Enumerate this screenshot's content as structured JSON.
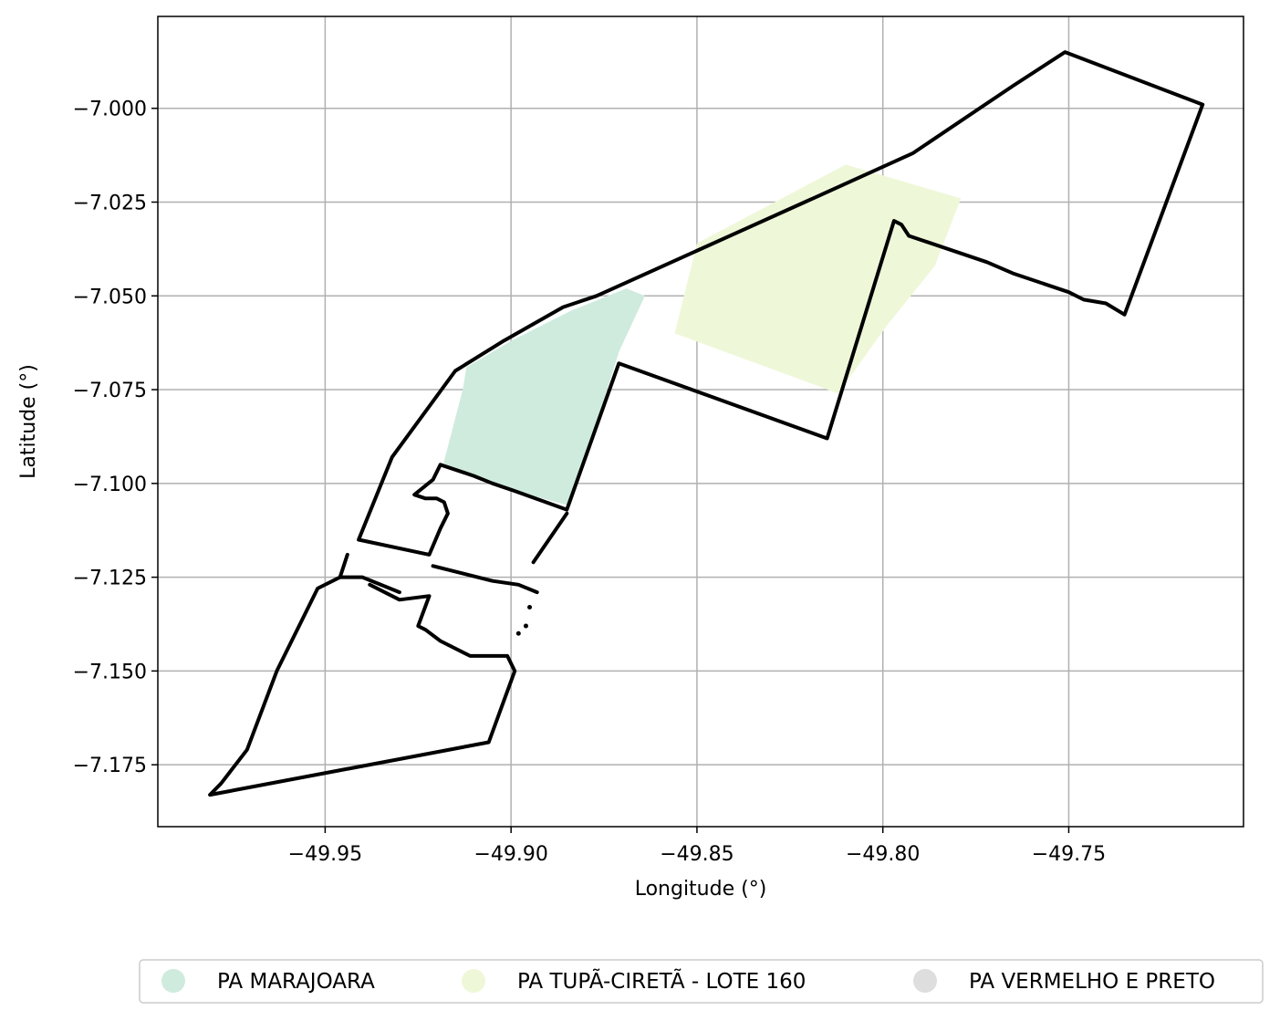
{
  "chart_data": {
    "type": "map",
    "xlabel": "Longitude (°)",
    "ylabel": "Latitude (°)",
    "xlim": [
      -49.995,
      -49.703
    ],
    "ylim": [
      -7.1915,
      -6.9755
    ],
    "grid": true,
    "x_ticks": [
      {
        "value": -49.95,
        "label": "−49.95"
      },
      {
        "value": -49.9,
        "label": "−49.90"
      },
      {
        "value": -49.85,
        "label": "−49.85"
      },
      {
        "value": -49.8,
        "label": "−49.80"
      },
      {
        "value": -49.75,
        "label": "−49.75"
      }
    ],
    "y_ticks": [
      {
        "value": -7.0,
        "label": "−7.000"
      },
      {
        "value": -7.025,
        "label": "−7.025"
      },
      {
        "value": -7.05,
        "label": "−7.050"
      },
      {
        "value": -7.075,
        "label": "−7.075"
      },
      {
        "value": -7.1,
        "label": "−7.100"
      },
      {
        "value": -7.125,
        "label": "−7.125"
      },
      {
        "value": -7.15,
        "label": "−7.150"
      },
      {
        "value": -7.175,
        "label": "−7.175"
      }
    ],
    "legend_position": "bottom",
    "legend": [
      {
        "name": "PA MARAJOARA",
        "color": "#cfebdd"
      },
      {
        "name": "PA TUPÃ-CIRETÃ - LOTE 160",
        "color": "#eef8d9"
      },
      {
        "name": "PA VERMELHO E PRETO",
        "color": "#dedede"
      }
    ],
    "areas": [
      {
        "name": "PA MARAJOARA",
        "color": "#cfebdd",
        "coords": [
          [
            -49.918,
            -7.094
          ],
          [
            -49.913,
            -7.075
          ],
          [
            -49.912,
            -7.069
          ],
          [
            -49.9,
            -7.062
          ],
          [
            -49.884,
            -7.054
          ],
          [
            -49.869,
            -7.048
          ],
          [
            -49.864,
            -7.05
          ],
          [
            -49.871,
            -7.065
          ],
          [
            -49.884,
            -7.106
          ],
          [
            -49.899,
            -7.102
          ],
          [
            -49.918,
            -7.095
          ]
        ]
      },
      {
        "name": "PA TUPÃ-CIRETÃ - LOTE 160",
        "color": "#eef8d9",
        "coords": [
          [
            -49.856,
            -7.06
          ],
          [
            -49.85,
            -7.036
          ],
          [
            -49.81,
            -7.015
          ],
          [
            -49.779,
            -7.024
          ],
          [
            -49.786,
            -7.042
          ],
          [
            -49.799,
            -7.058
          ],
          [
            -49.812,
            -7.076
          ],
          [
            -49.856,
            -7.06
          ]
        ]
      }
    ],
    "boundaries": [
      {
        "name": "PA VERMELHO E PRETO",
        "segments": [
          [
            [
              -49.885,
              -7.107
            ],
            [
              -49.899,
              -7.102
            ],
            [
              -49.905,
              -7.1
            ],
            [
              -49.91,
              -7.098
            ],
            [
              -49.919,
              -7.095
            ],
            [
              -49.921,
              -7.099
            ],
            [
              -49.926,
              -7.103
            ],
            [
              -49.923,
              -7.104
            ],
            [
              -49.92,
              -7.104
            ],
            [
              -49.918,
              -7.105
            ],
            [
              -49.917,
              -7.108
            ],
            [
              -49.919,
              -7.112
            ],
            [
              -49.922,
              -7.119
            ],
            [
              -49.941,
              -7.115
            ],
            [
              -49.932,
              -7.093
            ],
            [
              -49.915,
              -7.07
            ],
            [
              -49.902,
              -7.062
            ],
            [
              -49.886,
              -7.053
            ],
            [
              -49.877,
              -7.05
            ],
            [
              -49.868,
              -7.046
            ],
            [
              -49.821,
              -7.025
            ],
            [
              -49.792,
              -7.012
            ],
            [
              -49.765,
              -6.994
            ],
            [
              -49.751,
              -6.985
            ],
            [
              -49.714,
              -6.999
            ],
            [
              -49.735,
              -7.055
            ],
            [
              -49.74,
              -7.052
            ],
            [
              -49.746,
              -7.051
            ],
            [
              -49.75,
              -7.049
            ],
            [
              -49.765,
              -7.044
            ],
            [
              -49.772,
              -7.041
            ],
            [
              -49.793,
              -7.034
            ],
            [
              -49.795,
              -7.031
            ],
            [
              -49.797,
              -7.03
            ],
            [
              -49.815,
              -7.088
            ],
            [
              -49.871,
              -7.068
            ],
            [
              -49.885,
              -7.107
            ]
          ],
          [
            [
              -49.885,
              -7.108
            ],
            [
              -49.894,
              -7.121
            ]
          ],
          [
            [
              -49.921,
              -7.122
            ],
            [
              -49.905,
              -7.126
            ],
            [
              -49.898,
              -7.127
            ],
            [
              -49.893,
              -7.129
            ]
          ],
          [
            [
              -49.93,
              -7.129
            ],
            [
              -49.94,
              -7.125
            ],
            [
              -49.946,
              -7.125
            ],
            [
              -49.952,
              -7.128
            ],
            [
              -49.963,
              -7.15
            ],
            [
              -49.971,
              -7.171
            ],
            [
              -49.978,
              -7.18
            ],
            [
              -49.981,
              -7.183
            ],
            [
              -49.906,
              -7.169
            ],
            [
              -49.899,
              -7.15
            ],
            [
              -49.901,
              -7.146
            ],
            [
              -49.911,
              -7.146
            ],
            [
              -49.919,
              -7.142
            ],
            [
              -49.923,
              -7.139
            ],
            [
              -49.925,
              -7.138
            ],
            [
              -49.922,
              -7.13
            ],
            [
              -49.93,
              -7.131
            ],
            [
              -49.938,
              -7.127
            ]
          ],
          [
            [
              -49.944,
              -7.119
            ],
            [
              -49.946,
              -7.125
            ]
          ]
        ],
        "markers": [
          [
            -49.895,
            -7.133
          ],
          [
            -49.896,
            -7.138
          ],
          [
            -49.898,
            -7.14
          ]
        ]
      }
    ]
  }
}
